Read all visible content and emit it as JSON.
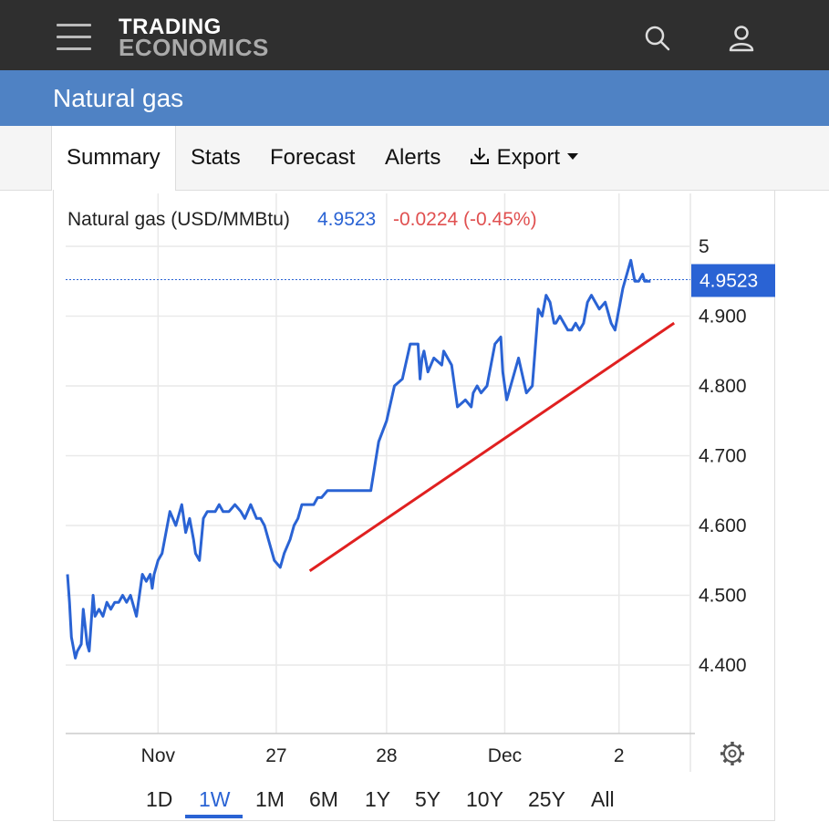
{
  "header": {
    "logo_line1": "TRADING",
    "logo_line2": "ECONOMICS",
    "menu_icon": "hamburger-menu-icon",
    "search_icon": "search-icon",
    "user_icon": "user-icon"
  },
  "page": {
    "title": "Natural gas"
  },
  "tabs": [
    {
      "label": "Summary",
      "active": true
    },
    {
      "label": "Stats"
    },
    {
      "label": "Forecast"
    },
    {
      "label": "Alerts"
    },
    {
      "label": "Export",
      "icon": "download-icon",
      "dropdown": true
    }
  ],
  "quote": {
    "name": "Natural gas (USD/MMBtu)",
    "price": "4.9523",
    "change": "-0.0224 (-0.45%)",
    "price_color": "#2a63d4",
    "change_color": "#e05050"
  },
  "ranges": {
    "items": [
      "1D",
      "1W",
      "1M",
      "6M",
      "1Y",
      "5Y",
      "10Y",
      "25Y",
      "All"
    ],
    "active": "1W"
  },
  "chart_data": {
    "type": "line",
    "title": "",
    "xlabel": "",
    "ylabel": "",
    "ylim": [
      4.3,
      5.02
    ],
    "y_ticks": [
      {
        "v": 5.0,
        "label": "5"
      },
      {
        "v": 4.9,
        "label": "4.900"
      },
      {
        "v": 4.8,
        "label": "4.800"
      },
      {
        "v": 4.7,
        "label": "4.700"
      },
      {
        "v": 4.6,
        "label": "4.600"
      },
      {
        "v": 4.5,
        "label": "4.500"
      },
      {
        "v": 4.4,
        "label": "4.400"
      }
    ],
    "x_ticks": [
      {
        "t": 4.6,
        "label": "Nov"
      },
      {
        "t": 10.6,
        "label": "27"
      },
      {
        "t": 16.2,
        "label": "28"
      },
      {
        "t": 22.2,
        "label": "Dec"
      },
      {
        "t": 28.0,
        "label": "2"
      }
    ],
    "xlim": [
      0,
      31.3
    ],
    "last_value": 4.9523,
    "last_value_label": "4.9523",
    "grid": true,
    "series": [
      {
        "color": "#2a63d4",
        "x": [
          0.0,
          0.1,
          0.2,
          0.4,
          0.5,
          0.7,
          0.8,
          1.0,
          1.1,
          1.3,
          1.4,
          1.6,
          1.8,
          2.0,
          2.2,
          2.4,
          2.6,
          2.8,
          3.0,
          3.2,
          3.5,
          3.8,
          4.0,
          4.2,
          4.3,
          4.4,
          4.6,
          4.8,
          5.0,
          5.2,
          5.5,
          5.8,
          6.0,
          6.2,
          6.4,
          6.5,
          6.7,
          6.9,
          7.1,
          7.3,
          7.5,
          7.7,
          7.9,
          8.0,
          8.2,
          8.5,
          8.8,
          9.0,
          9.3,
          9.6,
          9.8,
          10.0,
          10.2,
          10.5,
          10.8,
          11.0,
          11.3,
          11.5,
          11.7,
          11.9,
          12.1,
          12.3,
          12.5,
          12.7,
          12.9,
          13.2,
          13.6,
          14.0,
          14.2,
          14.6,
          15.0,
          15.4,
          15.8,
          16.2,
          16.6,
          17.0,
          17.4,
          17.8,
          17.9,
          18.0,
          18.1,
          18.3,
          18.6,
          19.0,
          19.1,
          19.3,
          19.5,
          19.8,
          20.2,
          20.5,
          20.6,
          20.8,
          21.0,
          21.3,
          21.7,
          22.0,
          22.1,
          22.3,
          22.6,
          22.9,
          23.3,
          23.6,
          23.9,
          24.1,
          24.3,
          24.5,
          24.7,
          24.8,
          25.0,
          25.2,
          25.4,
          25.6,
          25.8,
          26.0,
          26.2,
          26.4,
          26.6,
          26.8,
          27.0,
          27.3,
          27.6,
          27.8,
          28.0,
          28.2,
          28.5,
          28.6,
          28.8,
          29.0,
          29.2,
          29.3,
          29.4,
          29.6
        ],
        "y": [
          4.53,
          4.49,
          4.44,
          4.41,
          4.42,
          4.43,
          4.48,
          4.43,
          4.42,
          4.5,
          4.47,
          4.48,
          4.47,
          4.49,
          4.48,
          4.49,
          4.49,
          4.5,
          4.49,
          4.5,
          4.47,
          4.53,
          4.52,
          4.53,
          4.51,
          4.53,
          4.55,
          4.56,
          4.59,
          4.62,
          4.6,
          4.63,
          4.59,
          4.61,
          4.58,
          4.56,
          4.55,
          4.61,
          4.62,
          4.62,
          4.62,
          4.63,
          4.62,
          4.62,
          4.62,
          4.63,
          4.62,
          4.61,
          4.63,
          4.61,
          4.61,
          4.6,
          4.58,
          4.55,
          4.54,
          4.56,
          4.58,
          4.6,
          4.61,
          4.63,
          4.63,
          4.63,
          4.63,
          4.64,
          4.64,
          4.65,
          4.65,
          4.65,
          4.65,
          4.65,
          4.65,
          4.65,
          4.72,
          4.75,
          4.8,
          4.81,
          4.86,
          4.86,
          4.81,
          4.84,
          4.85,
          4.82,
          4.84,
          4.83,
          4.85,
          4.84,
          4.83,
          4.77,
          4.78,
          4.77,
          4.79,
          4.8,
          4.79,
          4.8,
          4.86,
          4.87,
          4.82,
          4.78,
          4.81,
          4.84,
          4.79,
          4.8,
          4.91,
          4.9,
          4.93,
          4.92,
          4.89,
          4.89,
          4.9,
          4.89,
          4.88,
          4.88,
          4.89,
          4.88,
          4.89,
          4.92,
          4.93,
          4.92,
          4.91,
          4.92,
          4.89,
          4.88,
          4.91,
          4.94,
          4.97,
          4.98,
          4.95,
          4.95,
          4.96,
          4.95,
          4.95,
          4.95
        ]
      }
    ],
    "trendline": {
      "color": "#e02020",
      "from": [
        12.3,
        4.535
      ],
      "to": [
        30.8,
        4.89
      ]
    }
  }
}
